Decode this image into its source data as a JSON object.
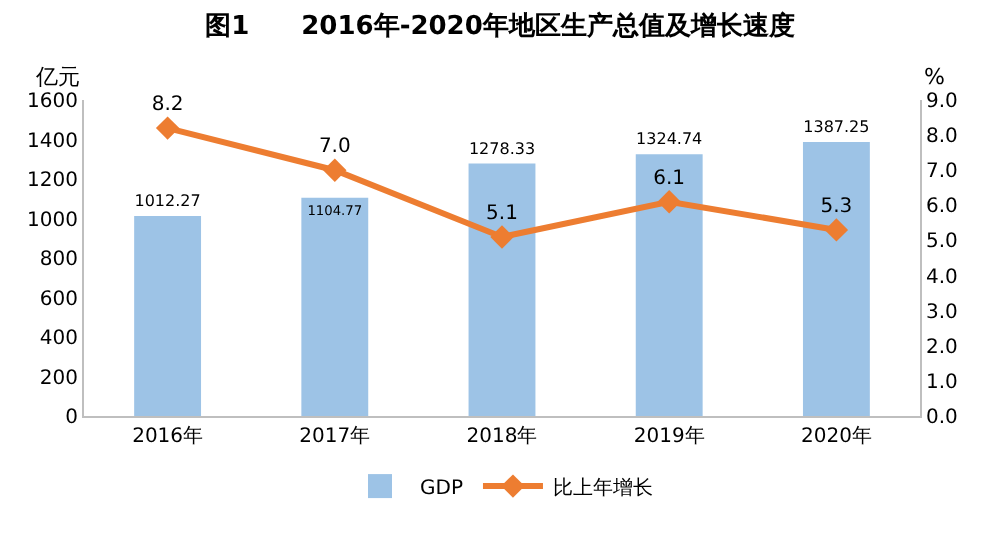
{
  "chart_data": {
    "type": "bar",
    "title": "图1　　2016年-2020年地区生产总值及增长速度",
    "categories": [
      "2016年",
      "2017年",
      "2018年",
      "2019年",
      "2020年"
    ],
    "ylabel": "亿元",
    "y2label": "%",
    "series": [
      {
        "name": "GDP",
        "color": "#9dc3e6",
        "values": [
          1012.27,
          1104.77,
          1278.33,
          1324.74,
          1387.25
        ]
      },
      {
        "name": "比上年增长",
        "type": "line",
        "axis": "y2",
        "color": "#ed7d31",
        "marker": "diamond",
        "values": [
          8.2,
          7.0,
          5.1,
          6.1,
          5.3
        ],
        "value_labels": [
          "8.2",
          "7.0",
          "5.1",
          "6.1",
          "5.3"
        ]
      }
    ],
    "ylim": [
      0,
      1600
    ],
    "yticks": [
      0,
      200,
      400,
      600,
      800,
      1000,
      1200,
      1400,
      1600
    ],
    "y2lim": [
      0,
      9
    ],
    "y2ticks": [
      {
        "value": 0,
        "label": "0.0"
      },
      {
        "value": 1,
        "label": "1.0"
      },
      {
        "value": 2,
        "label": "2.0"
      },
      {
        "value": 3,
        "label": "3.0"
      },
      {
        "value": 4,
        "label": "4.0"
      },
      {
        "value": 5,
        "label": "5.0"
      },
      {
        "value": 6,
        "label": "6.0"
      },
      {
        "value": 7,
        "label": "7.0"
      },
      {
        "value": 8,
        "label": "8.0"
      },
      {
        "value": 9,
        "label": "9.0"
      }
    ],
    "data_labels": true,
    "legend": "bottom",
    "grid": false
  }
}
